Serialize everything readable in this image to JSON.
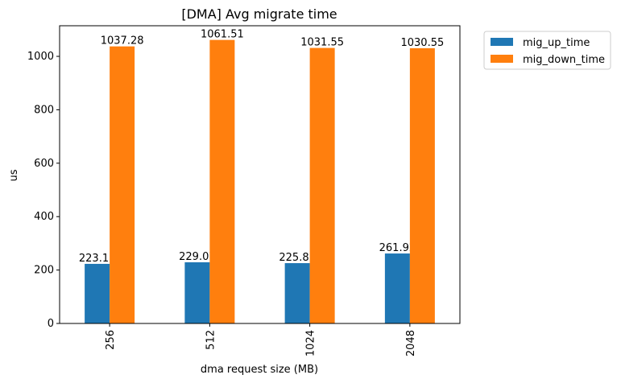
{
  "chart_data": {
    "type": "bar",
    "title": "[DMA] Avg migrate time",
    "xlabel": "dma request size (MB)",
    "ylabel": "us",
    "categories": [
      "256",
      "512",
      "1024",
      "2048"
    ],
    "series": [
      {
        "name": "mig_up_time",
        "color": "#1f77b4",
        "values": [
          223.11,
          229.07,
          225.81,
          261.92
        ],
        "labels": [
          "223.11",
          "229.07",
          "225.81",
          "261.92"
        ]
      },
      {
        "name": "mig_down_time",
        "color": "#ff7f0e",
        "values": [
          1037.28,
          1061.51,
          1031.55,
          1030.55
        ],
        "labels": [
          "1037.28",
          "1061.51",
          "1031.55",
          "1030.55"
        ]
      }
    ],
    "ylim": [
      0,
      1114.6
    ],
    "yticks": [
      0,
      200,
      400,
      600,
      800,
      1000
    ],
    "ytick_labels": [
      "0",
      "200",
      "400",
      "600",
      "800",
      "1000"
    ],
    "grid": false,
    "legend_position": "outside-top-right"
  }
}
